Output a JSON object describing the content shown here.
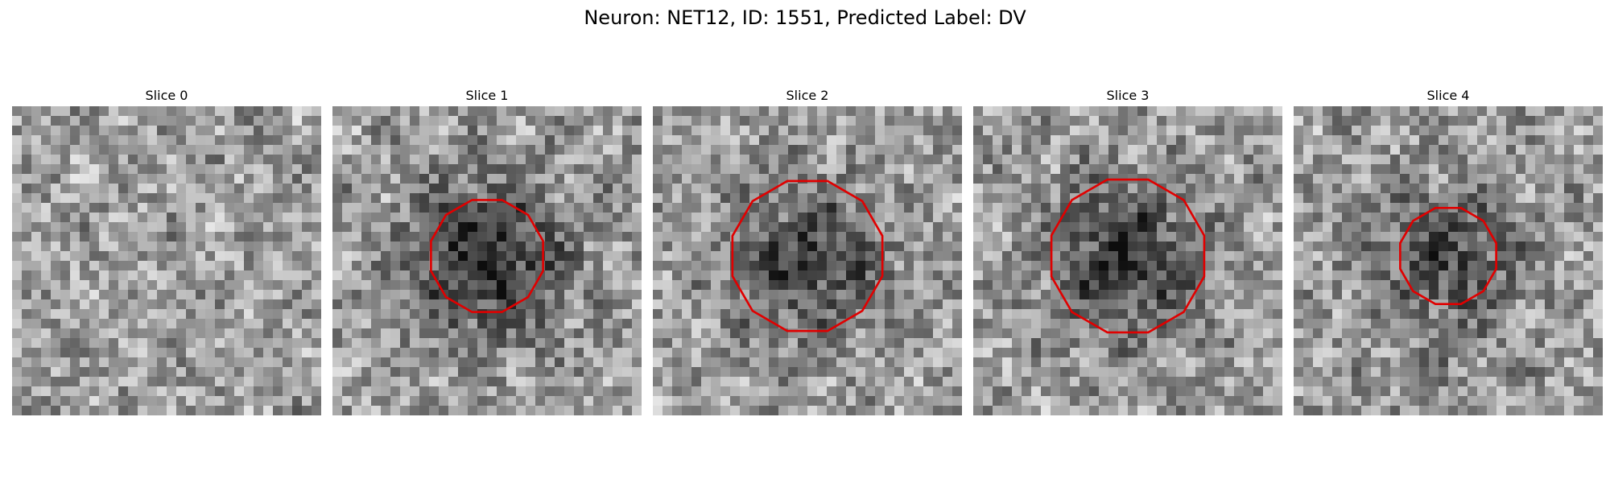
{
  "figure": {
    "title": "Neuron: NET12, ID: 1551, Predicted Label: DV"
  },
  "panels": [
    {
      "title": "Slice 0",
      "seed": 11,
      "dark_center": 0.0,
      "outline_scale": 0.0
    },
    {
      "title": "Slice 1",
      "seed": 23,
      "dark_center": 0.45,
      "outline_scale": 0.77
    },
    {
      "title": "Slice 2",
      "seed": 37,
      "dark_center": 0.35,
      "outline_scale": 1.03
    },
    {
      "title": "Slice 3",
      "seed": 51,
      "dark_center": 0.4,
      "outline_scale": 1.05
    },
    {
      "title": "Slice 4",
      "seed": 67,
      "dark_center": 0.3,
      "outline_scale": 0.66
    }
  ],
  "colors": {
    "outline": "#e00000"
  }
}
